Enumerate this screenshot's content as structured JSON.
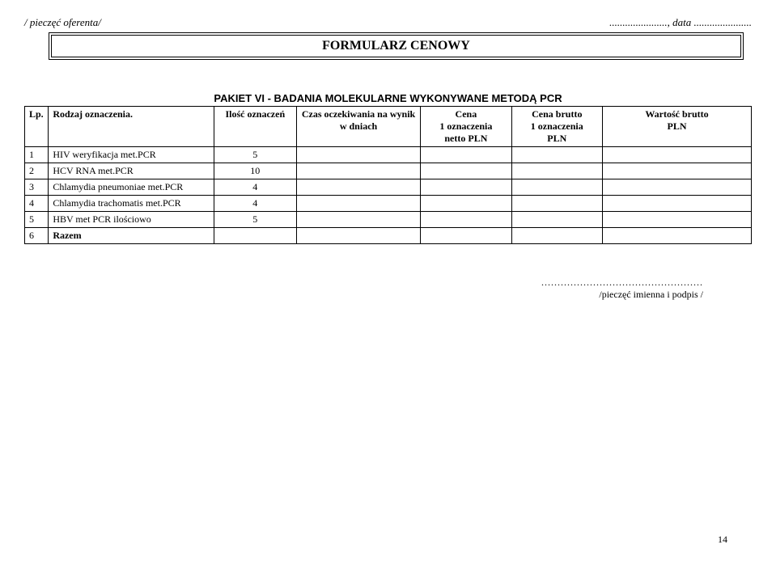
{
  "header": {
    "stamp_left": "/ pieczęć oferenta/",
    "date_right": "......................, data ......................"
  },
  "title": "FORMULARZ   CENOWY",
  "pakiet_label": "PAKIET VI - BADANIA MOLEKULARNE WYKONYWANE METODĄ PCR",
  "table": {
    "headers": {
      "lp": "Lp.",
      "rodzaj": "Rodzaj oznaczenia.",
      "ilosc": "Ilość oznaczeń",
      "czas": "Czas oczekiwania na wynik w dniach",
      "cena": "Cena\n1 oznaczenia\nnetto PLN",
      "cena_brutto": "Cena brutto\n1 oznaczenia\nPLN",
      "wartosc": "Wartość brutto\nPLN"
    },
    "rows": [
      {
        "lp": "1",
        "name": "HIV weryfikacja met.PCR",
        "qty": "5"
      },
      {
        "lp": "2",
        "name": "HCV RNA met.PCR",
        "qty": "10"
      },
      {
        "lp": "3",
        "name": "Chlamydia pneumoniae met.PCR",
        "qty": "4"
      },
      {
        "lp": "4",
        "name": "Chlamydia trachomatis met.PCR",
        "qty": "4"
      },
      {
        "lp": "5",
        "name": "HBV met PCR ilościowo",
        "qty": "5"
      },
      {
        "lp": "6",
        "name": "Razem",
        "qty": ""
      }
    ]
  },
  "footer": {
    "dots": "..................................................",
    "sig": "/pieczęć imienna i podpis /"
  },
  "page_number": "14"
}
